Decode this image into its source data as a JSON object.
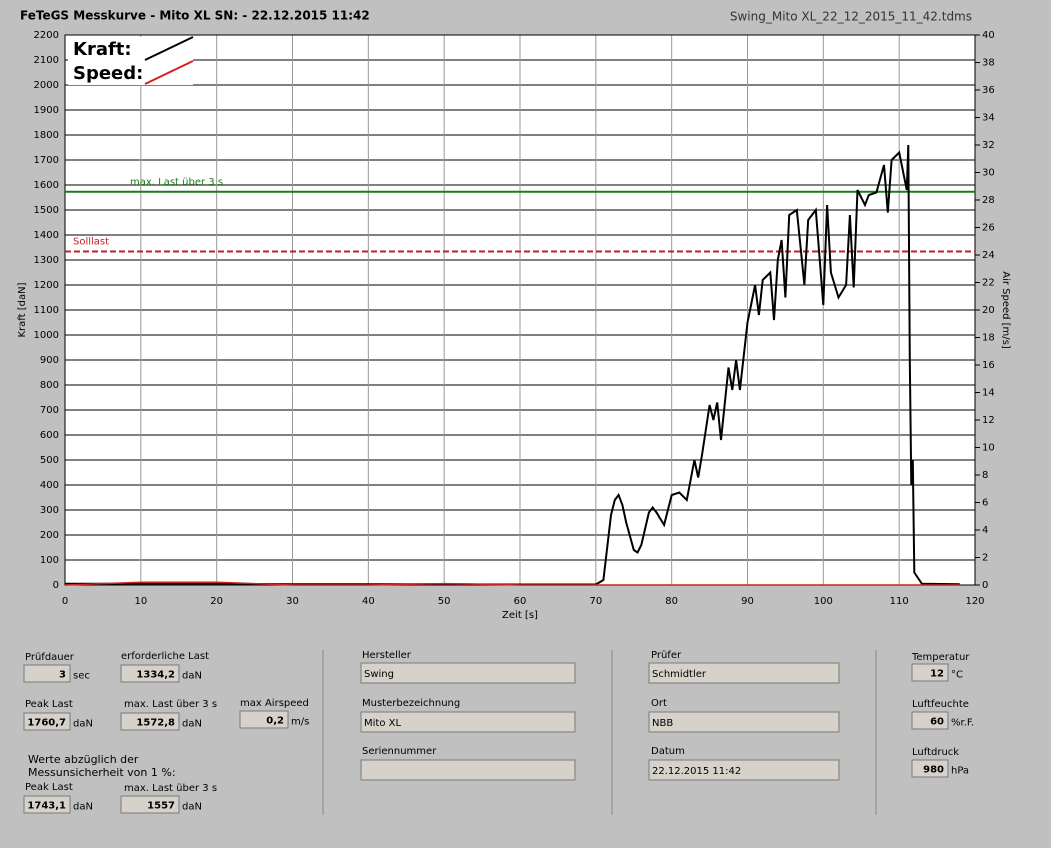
{
  "header": {
    "title": "FeTeGS Messkurve - Mito XL  SN:  - 22.12.2015 11:42",
    "filename": "Swing_Mito XL_22_12_2015_11_42.tdms"
  },
  "chart_data": {
    "type": "line",
    "x_label": "Zeit [s]",
    "y_label": "Kraft [daN]",
    "y2_label": "Air Speed [m/s]",
    "xlim": [
      0,
      120
    ],
    "xticks": [
      0,
      10,
      20,
      30,
      40,
      50,
      60,
      70,
      80,
      90,
      100,
      110,
      120
    ],
    "ylim": [
      0,
      2200
    ],
    "yticks": [
      0,
      100,
      200,
      300,
      400,
      500,
      600,
      700,
      800,
      900,
      1000,
      1100,
      1200,
      1300,
      1400,
      1500,
      1600,
      1700,
      1800,
      1900,
      2000,
      2100,
      2200
    ],
    "y2lim": [
      0,
      40
    ],
    "y2ticks": [
      0,
      2,
      4,
      6,
      8,
      10,
      12,
      14,
      16,
      18,
      20,
      22,
      24,
      26,
      28,
      30,
      32,
      34,
      36,
      38,
      40
    ],
    "grid": true,
    "legend": "upper left",
    "x": [
      0,
      10,
      20,
      30,
      40,
      50,
      60,
      70,
      71,
      71.5,
      72,
      72.5,
      73,
      73.5,
      74,
      75,
      75.5,
      76,
      77,
      77.5,
      78,
      79,
      80,
      81,
      82,
      83,
      83.5,
      84,
      85,
      85.5,
      86,
      86.5,
      87.5,
      88,
      88.5,
      89,
      90,
      91,
      91.5,
      92,
      93,
      93.5,
      94,
      94.5,
      95,
      95.5,
      96.5,
      97.5,
      98,
      99,
      100,
      100.5,
      101,
      102,
      103,
      103.5,
      104,
      104.5,
      105.5,
      106,
      107,
      108,
      108.5,
      109,
      110,
      111,
      111.2,
      111.4,
      111.6,
      111.8,
      112,
      113,
      118
    ],
    "series": [
      {
        "name": "Kraft:",
        "color": "#000000",
        "values": [
          5,
          5,
          5,
          3,
          3,
          3,
          2,
          2,
          20,
          150,
          280,
          340,
          360,
          320,
          250,
          140,
          130,
          160,
          290,
          310,
          290,
          240,
          360,
          370,
          340,
          500,
          430,
          520,
          720,
          660,
          730,
          580,
          870,
          780,
          900,
          780,
          1050,
          1200,
          1080,
          1220,
          1250,
          1060,
          1300,
          1380,
          1150,
          1480,
          1500,
          1200,
          1460,
          1500,
          1120,
          1520,
          1250,
          1150,
          1200,
          1480,
          1190,
          1580,
          1520,
          1560,
          1570,
          1680,
          1490,
          1700,
          1730,
          1580,
          1760,
          900,
          400,
          500,
          50,
          5,
          3
        ]
      },
      {
        "name": "Speed:",
        "color": "#d42020",
        "axis": "y2",
        "values": [
          0,
          0.2,
          0.2,
          0,
          0,
          0.1,
          0,
          0,
          0,
          0,
          0,
          0,
          0,
          0,
          0,
          0,
          0,
          0,
          0,
          0,
          0,
          0,
          0,
          0,
          0,
          0,
          0,
          0,
          0,
          0,
          0,
          0,
          0,
          0,
          0,
          0,
          0,
          0,
          0,
          0,
          0,
          0,
          0,
          0,
          0,
          0,
          0,
          0,
          0,
          0,
          0,
          0,
          0,
          0,
          0,
          0,
          0,
          0,
          0,
          0,
          0,
          0,
          0,
          0,
          0,
          0,
          0,
          0,
          0,
          0,
          0,
          0,
          0
        ]
      }
    ],
    "reference_lines": [
      {
        "label": "max. Last über  3 s",
        "value": 1572.8,
        "color": "#1e7a1e",
        "dashed": false
      },
      {
        "label": "Solllast",
        "value": 1334.2,
        "color": "#c0202a",
        "dashed": true
      }
    ]
  },
  "panel": {
    "fields": [
      {
        "label": "Prüfdauer",
        "value": "3",
        "unit": "sec"
      },
      {
        "label": "erforderliche Last",
        "value": "1334,2",
        "unit": "daN"
      },
      {
        "label": "Peak Last",
        "value": "1760,7",
        "unit": "daN"
      },
      {
        "label": "max. Last über  3 s",
        "value": "1572,8",
        "unit": "daN"
      },
      {
        "label": "max Airspeed",
        "value": "0,2",
        "unit": "m/s"
      },
      {
        "label": "Peak Last",
        "value": "1743,1",
        "unit": "daN"
      },
      {
        "label": "max. Last über  3 s",
        "value": "1557",
        "unit": "daN"
      },
      {
        "label": "Hersteller",
        "value": "Swing"
      },
      {
        "label": "Musterbezeichnung",
        "value": "Mito XL"
      },
      {
        "label": "Seriennummer"
      },
      {
        "label": "Prüfer",
        "value": "Schmidtler"
      },
      {
        "label": "Ort",
        "value": "NBB"
      },
      {
        "label": "Datum",
        "value": "22.12.2015 11:42"
      },
      {
        "label": "Temperatur",
        "value": "12",
        "unit": "°C"
      },
      {
        "label": "Luftfeuchte",
        "value": "60",
        "unit": "%r.F."
      },
      {
        "label": "Luftdruck",
        "value": "980",
        "unit": "hPa"
      }
    ],
    "note": [
      "Werte abzüglich der",
      "Messunsicherheit von 1  %:"
    ]
  }
}
